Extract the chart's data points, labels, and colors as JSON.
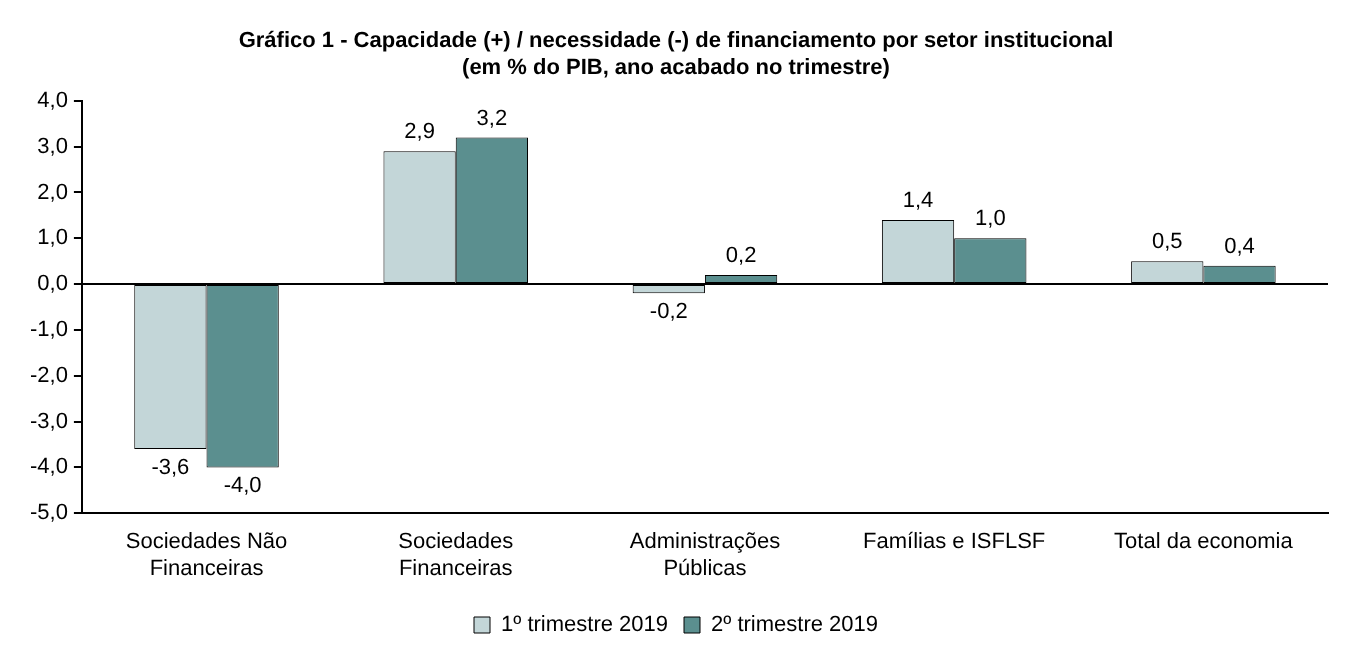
{
  "chart_data": {
    "type": "bar",
    "title": "Gráfico 1 - Capacidade (+) / necessidade (-) de financiamento por setor institucional",
    "subtitle": "(em % do PIB, ano acabado no trimestre)",
    "categories": [
      "Sociedades Não Financeiras",
      "Sociedades Financeiras",
      "Administrações Públicas",
      "Famílias e ISFLSF",
      "Total da economia"
    ],
    "series": [
      {
        "name": "1º trimestre 2019",
        "color": "#c3d6d8",
        "values": [
          -3.6,
          2.9,
          -0.2,
          1.4,
          0.5
        ],
        "value_labels": [
          "-3,6",
          "2,9",
          "-0,2",
          "1,4",
          "0,5"
        ]
      },
      {
        "name": "2º trimestre 2019",
        "color": "#5b8f8f",
        "values": [
          -4.0,
          3.2,
          0.2,
          1.0,
          0.4
        ],
        "value_labels": [
          "-4,0",
          "3,2",
          "0,2",
          "1,0",
          "0,4"
        ]
      }
    ],
    "ylim": [
      -5,
      4
    ],
    "yticks": [
      {
        "value": -5,
        "label": "-5,0"
      },
      {
        "value": -4,
        "label": "-4,0"
      },
      {
        "value": -3,
        "label": "-3,0"
      },
      {
        "value": -2,
        "label": "-2,0"
      },
      {
        "value": -1,
        "label": "-1,0"
      },
      {
        "value": 0,
        "label": "0,0"
      },
      {
        "value": 1,
        "label": "1,0"
      },
      {
        "value": 2,
        "label": "2,0"
      },
      {
        "value": 3,
        "label": "3,0"
      },
      {
        "value": 4,
        "label": "4,0"
      }
    ],
    "ref_lines": [
      {
        "axis": "y",
        "value": 0,
        "color": "#000000"
      }
    ],
    "grid": false,
    "legend": "bottom"
  }
}
